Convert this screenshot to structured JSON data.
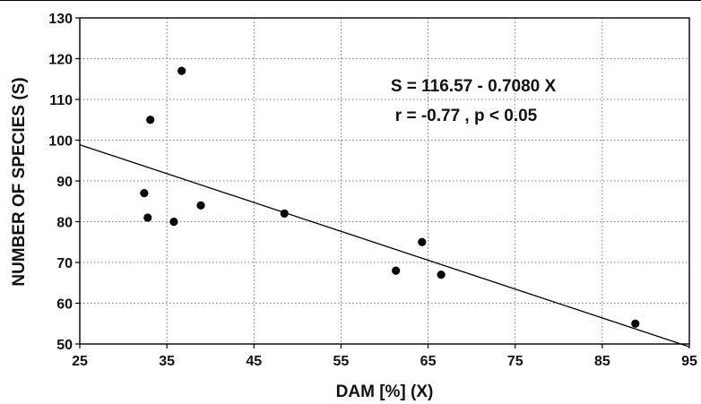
{
  "chart_data": {
    "type": "scatter",
    "title": "",
    "xlabel": "DAM [%] (X)",
    "ylabel": "NUMBER OF SPECIES (S)",
    "xlim": [
      25,
      95
    ],
    "ylim": [
      50,
      130
    ],
    "xticks": [
      25,
      35,
      45,
      55,
      65,
      75,
      85,
      95
    ],
    "yticks": [
      50,
      60,
      70,
      80,
      90,
      100,
      110,
      120,
      130
    ],
    "grid": true,
    "series": [
      {
        "points": [
          {
            "x": 32.4,
            "y": 87
          },
          {
            "x": 32.8,
            "y": 81
          },
          {
            "x": 33.1,
            "y": 105
          },
          {
            "x": 35.8,
            "y": 80
          },
          {
            "x": 36.7,
            "y": 117
          },
          {
            "x": 38.9,
            "y": 84
          },
          {
            "x": 48.5,
            "y": 82
          },
          {
            "x": 61.3,
            "y": 68
          },
          {
            "x": 64.3,
            "y": 75
          },
          {
            "x": 66.5,
            "y": 67
          },
          {
            "x": 88.8,
            "y": 55
          }
        ]
      }
    ],
    "regression": {
      "intercept": 116.57,
      "slope": -0.708
    },
    "annotations": [
      "S = 116.57 - 0.7080 X",
      "r = -0.77 , p < 0.05"
    ]
  }
}
